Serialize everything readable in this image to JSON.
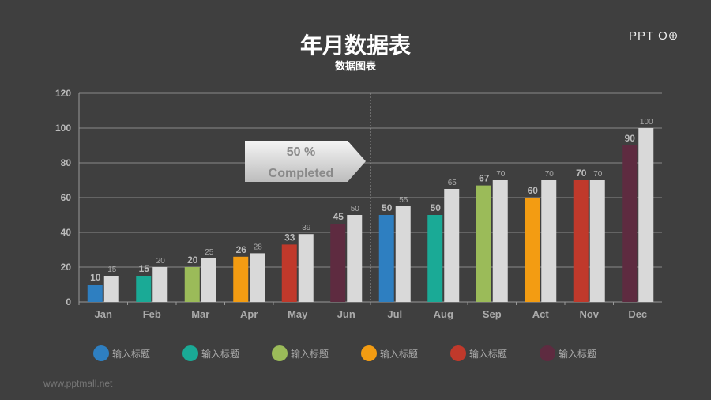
{
  "header": {
    "title": "年月数据表",
    "subtitle": "数据图表",
    "logo": "PPT"
  },
  "footer": {
    "url": "www.pptmall.net"
  },
  "callout": {
    "line1": "50 %",
    "line2": "Completed"
  },
  "chart_data": {
    "type": "bar",
    "categories": [
      "Jan",
      "Feb",
      "Mar",
      "Apr",
      "May",
      "Jun",
      "Jul",
      "Aug",
      "Sep",
      "Act",
      "Nov",
      "Dec"
    ],
    "series": [
      {
        "values": [
          10,
          15,
          20,
          26,
          33,
          45,
          50,
          50,
          67,
          60,
          70,
          90
        ],
        "colors": [
          "#2e7fc1",
          "#1aaa96",
          "#9bbb59",
          "#f39c12",
          "#c0392b",
          "#5e2b40",
          "#2e7fc1",
          "#1aaa96",
          "#9bbb59",
          "#f39c12",
          "#c0392b",
          "#5e2b40"
        ]
      },
      {
        "values": [
          15,
          20,
          25,
          28,
          39,
          50,
          55,
          65,
          70,
          70,
          70,
          100
        ],
        "color": "#d9d9d9"
      }
    ],
    "ylim": [
      0,
      120
    ],
    "yticks": [
      0,
      20,
      40,
      60,
      80,
      100,
      120
    ],
    "grid": true,
    "legend": {
      "placement": "bottom",
      "entries": [
        {
          "label": "输入标题",
          "color": "#2e7fc1"
        },
        {
          "label": "输入标题",
          "color": "#1aaa96"
        },
        {
          "label": "输入标题",
          "color": "#9bbb59"
        },
        {
          "label": "输入标题",
          "color": "#f39c12"
        },
        {
          "label": "输入标题",
          "color": "#c0392b"
        },
        {
          "label": "输入标题",
          "color": "#5e2b40"
        }
      ]
    }
  }
}
